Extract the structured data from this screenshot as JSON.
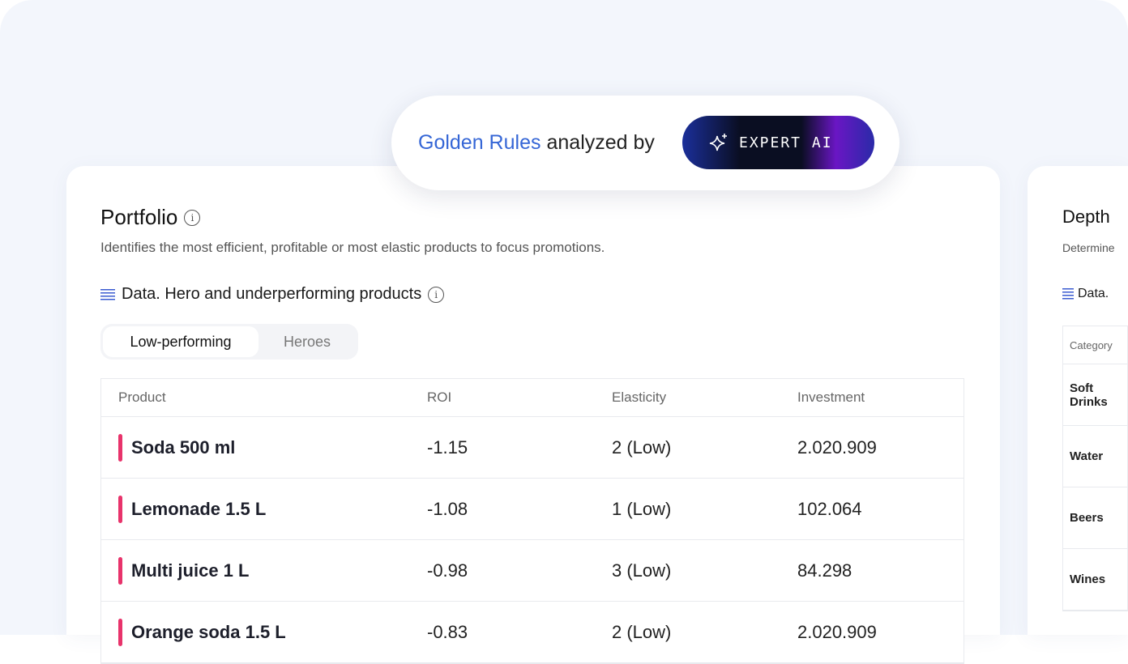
{
  "banner": {
    "highlight": "Golden Rules",
    "text": "analyzed by",
    "button_label": "EXPERT AI",
    "button_icon": "sparkle-icon"
  },
  "portfolio": {
    "title": "Portfolio",
    "description": "Identifies the most efficient, profitable or most elastic products to focus promotions.",
    "section_title": "Data. Hero and underperforming products",
    "tabs": [
      {
        "label": "Low-performing",
        "active": true
      },
      {
        "label": "Heroes",
        "active": false
      }
    ],
    "columns": [
      "Product",
      "ROI",
      "Elasticity",
      "Investment"
    ],
    "rows": [
      {
        "product": "Soda 500 ml",
        "roi": "-1.15",
        "elasticity": "2 (Low)",
        "investment": "2.020.909"
      },
      {
        "product": "Lemonade 1.5 L",
        "roi": "-1.08",
        "elasticity": "1 (Low)",
        "investment": "102.064"
      },
      {
        "product": "Multi juice 1 L",
        "roi": "-0.98",
        "elasticity": "3 (Low)",
        "investment": "84.298"
      },
      {
        "product": "Orange soda 1.5 L",
        "roi": "-0.83",
        "elasticity": "2 (Low)",
        "investment": "2.020.909"
      }
    ],
    "accent": "#e8336b"
  },
  "depth": {
    "title": "Depth",
    "description": "Determine",
    "section_title": "Data.",
    "column": "Category",
    "rows": [
      "Soft Drinks",
      "Water",
      "Beers",
      "Wines"
    ]
  }
}
